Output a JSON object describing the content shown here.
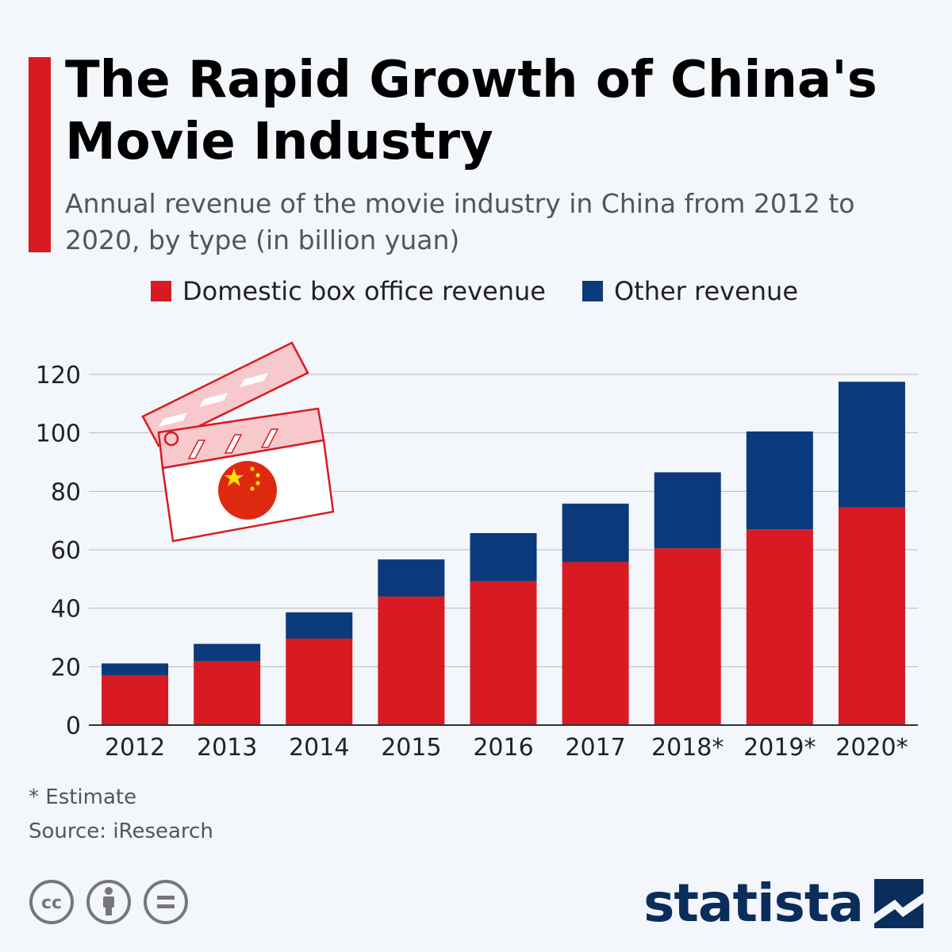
{
  "header": {
    "title": "The Rapid Growth of China's Movie Industry",
    "subtitle": "Annual revenue of the movie industry in China from 2012 to 2020, by type (in billion yuan)"
  },
  "footer": {
    "footnote": "* Estimate",
    "source": "Source: iResearch",
    "brand": "statista"
  },
  "colors": {
    "accent": "#d81b23",
    "domestic": "#d81b23",
    "other": "#0b3a7c",
    "grid": "#bbbbbb",
    "brand": "#0b2d5b"
  },
  "icons": [
    "creative-commons-icon",
    "attribution-icon",
    "no-derivatives-icon",
    "clapperboard-icon",
    "china-flag-icon",
    "statista-logo-icon"
  ],
  "chart_data": {
    "type": "bar",
    "stacked": true,
    "title": "The Rapid Growth of China's Movie Industry",
    "xlabel": "",
    "ylabel": "",
    "ylim": [
      0,
      120
    ],
    "yticks": [
      0,
      20,
      40,
      60,
      80,
      100,
      120
    ],
    "grid": true,
    "legend_position": "top",
    "categories": [
      "2012",
      "2013",
      "2014",
      "2015",
      "2016",
      "2017",
      "2018*",
      "2019*",
      "2020*"
    ],
    "series": [
      {
        "name": "Domestic box office revenue",
        "color": "#d81b23",
        "values": [
          17,
          21.8,
          29.6,
          44,
          49.2,
          55.8,
          60.5,
          67,
          74.5
        ]
      },
      {
        "name": "Other revenue",
        "color": "#0b3a7c",
        "values": [
          4.1,
          6,
          9,
          12.7,
          16.5,
          20,
          26,
          33.5,
          43
        ]
      }
    ]
  }
}
